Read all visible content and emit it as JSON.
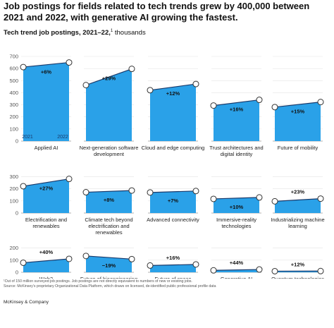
{
  "title": "Job postings for fields related to tech trends grew by 400,000 between 2021 and 2022, with generative AI growing the fastest.",
  "subtitle": "Tech trend job postings, 2021–22,",
  "subtitle_sup": "1",
  "subtitle_unit": "thousands",
  "footnote": "¹Out of 150 million surveyed job postings. Job postings are not directly equivalent to numbers of new or existing jobs.",
  "source": "Source: McKinsey’s proprietary Organizational Data Platform, which draws on licensed, de-identified public professional profile data",
  "brand": "McKinsey & Company",
  "colors": {
    "fill": "#2aa1e8",
    "line": "#1a3a6b",
    "marker_stroke": "#333333",
    "marker_fill": "#ffffff"
  },
  "chart_data": {
    "type": "area",
    "x": [
      "2021",
      "2022"
    ],
    "ylim": [
      0,
      700
    ],
    "row_ticks": [
      [
        0,
        100,
        200,
        300,
        400,
        500,
        600,
        700
      ],
      [
        0,
        100,
        200,
        300
      ],
      [
        0,
        100,
        200
      ]
    ],
    "series": [
      {
        "name": "Applied AI",
        "values": [
          612,
          650
        ],
        "change": "+6%"
      },
      {
        "name": "Next-generation software development",
        "values": [
          463,
          597
        ],
        "change": "+29%"
      },
      {
        "name": "Cloud and edge computing",
        "values": [
          421,
          472
        ],
        "change": "+12%"
      },
      {
        "name": "Trust architectures and digital identity",
        "values": [
          294,
          341
        ],
        "change": "+16%"
      },
      {
        "name": "Future of mobility",
        "values": [
          281,
          323
        ],
        "change": "+15%"
      },
      {
        "name": "Electrification and renewables",
        "values": [
          222,
          282
        ],
        "change": "+27%"
      },
      {
        "name": "Climate tech beyond electrification and renewables",
        "values": [
          172,
          186
        ],
        "change": "+8%"
      },
      {
        "name": "Advanced connectivity",
        "values": [
          170,
          182
        ],
        "change": "+7%"
      },
      {
        "name": "Immersive-reality technologies",
        "values": [
          117,
          129
        ],
        "change": "+10%"
      },
      {
        "name": "Industrializing machine learning",
        "values": [
          97,
          119
        ],
        "change": "+23%"
      },
      {
        "name": "Web3",
        "values": [
          79,
          111
        ],
        "change": "+40%"
      },
      {
        "name": "Future of bioengineering",
        "values": [
          135,
          109
        ],
        "change": "−19%"
      },
      {
        "name": "Future of space technologies",
        "values": [
          56,
          65
        ],
        "change": "+16%"
      },
      {
        "name": "Generative AI",
        "values": [
          16,
          23
        ],
        "change": "+44%"
      },
      {
        "name": "Quantum technologies",
        "values": [
          9,
          10
        ],
        "change": "+12%"
      }
    ]
  }
}
